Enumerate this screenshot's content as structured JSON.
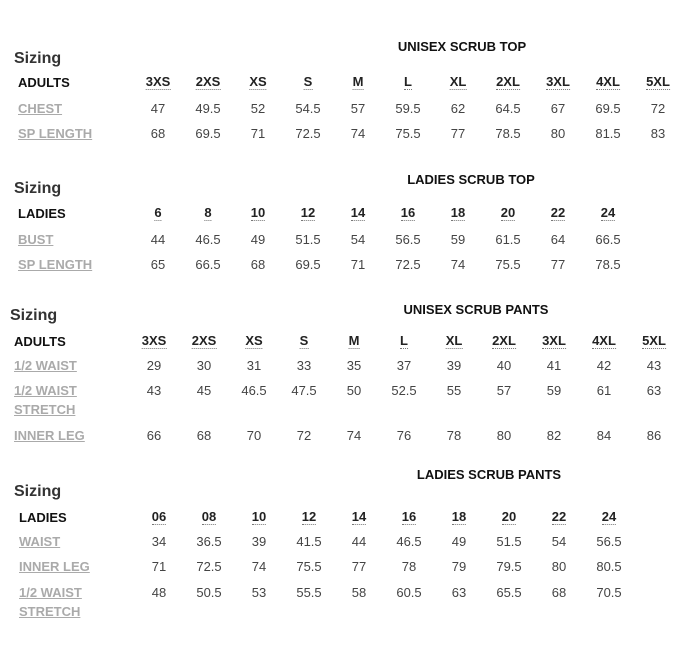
{
  "sections": [
    {
      "sizing": "Sizing",
      "title": "UNISEX SCRUB TOP",
      "header": [
        "ADULTS",
        "3XS",
        "2XS",
        "XS",
        "S",
        "M",
        "L",
        "XL",
        "2XL",
        "3XL",
        "4XL",
        "5XL"
      ],
      "rows": [
        [
          "CHEST",
          "47",
          "49.5",
          "52",
          "54.5",
          "57",
          "59.5",
          "62",
          "64.5",
          "67",
          "69.5",
          "72"
        ],
        [
          "SP LENGTH",
          "68",
          "69.5",
          "71",
          "72.5",
          "74",
          "75.5",
          "77",
          "78.5",
          "80",
          "81.5",
          "83"
        ]
      ]
    },
    {
      "sizing": "Sizing",
      "title": "LADIES SCRUB TOP",
      "header": [
        "LADIES",
        "6",
        "8",
        "10",
        "12",
        "14",
        "16",
        "18",
        "20",
        "22",
        "24"
      ],
      "rows": [
        [
          "BUST",
          "44",
          "46.5",
          "49",
          "51.5",
          "54",
          "56.5",
          "59",
          "61.5",
          "64",
          "66.5"
        ],
        [
          "SP LENGTH",
          "65",
          "66.5",
          "68",
          "69.5",
          "71",
          "72.5",
          "74",
          "75.5",
          "77",
          "78.5"
        ]
      ]
    },
    {
      "sizing": "Sizing",
      "title": "UNISEX SCRUB PANTS",
      "header": [
        "ADULTS",
        "3XS",
        "2XS",
        "XS",
        "S",
        "M",
        "L",
        "XL",
        "2XL",
        "3XL",
        "4XL",
        "5XL"
      ],
      "rows": [
        [
          "1/2 WAIST",
          "29",
          "30",
          "31",
          "33",
          "35",
          "37",
          "39",
          "40",
          "41",
          "42",
          "43"
        ],
        [
          "1/2 WAIST STRETCH",
          "43",
          "45",
          "46.5",
          "47.5",
          "50",
          "52.5",
          "55",
          "57",
          "59",
          "61",
          "63"
        ],
        [
          "INNER LEG",
          "66",
          "68",
          "70",
          "72",
          "74",
          "76",
          "78",
          "80",
          "82",
          "84",
          "86"
        ]
      ]
    },
    {
      "sizing": "Sizing",
      "title": "LADIES SCRUB PANTS",
      "header": [
        "LADIES",
        "06",
        "08",
        "10",
        "12",
        "14",
        "16",
        "18",
        "20",
        "22",
        "24"
      ],
      "rows": [
        [
          "WAIST",
          "34",
          "36.5",
          "39",
          "41.5",
          "44",
          "46.5",
          "49",
          "51.5",
          "54",
          "56.5"
        ],
        [
          "INNER LEG",
          "71",
          "72.5",
          "74",
          "75.5",
          "77",
          "78",
          "79",
          "79.5",
          "80",
          "80.5"
        ],
        [
          "1/2 WAIST STRETCH",
          "48",
          "50.5",
          "53",
          "55.5",
          "58",
          "60.5",
          "63",
          "65.5",
          "68",
          "70.5"
        ]
      ]
    }
  ]
}
